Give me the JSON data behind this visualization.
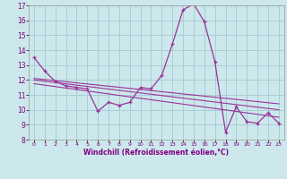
{
  "xlabel": "Windchill (Refroidissement éolien,°C)",
  "bg_color": "#cce8ec",
  "grid_color": "#aacdd4",
  "line_color": "#993399",
  "xlim": [
    -0.5,
    23.5
  ],
  "ylim": [
    8,
    17
  ],
  "xticks": [
    0,
    1,
    2,
    3,
    4,
    5,
    6,
    7,
    8,
    9,
    10,
    11,
    12,
    13,
    14,
    15,
    16,
    17,
    18,
    19,
    20,
    21,
    22,
    23
  ],
  "yticks": [
    8,
    9,
    10,
    11,
    12,
    13,
    14,
    15,
    16,
    17
  ],
  "series1_x": [
    0,
    1,
    2,
    3,
    4,
    5,
    6,
    7,
    8,
    9,
    10,
    11,
    12,
    13,
    14,
    15,
    16,
    17,
    18,
    19,
    20,
    21,
    22,
    23
  ],
  "series1_y": [
    13.5,
    12.6,
    11.9,
    11.6,
    11.5,
    11.4,
    9.9,
    10.5,
    10.3,
    10.5,
    11.5,
    11.4,
    12.3,
    14.4,
    16.7,
    17.1,
    15.9,
    13.2,
    8.5,
    10.2,
    9.2,
    9.1,
    9.8,
    9.1
  ],
  "trend1_x": [
    0,
    23
  ],
  "trend1_y": [
    12.1,
    10.4
  ],
  "trend2_x": [
    0,
    23
  ],
  "trend2_y": [
    11.75,
    9.5
  ],
  "trend3_x": [
    0,
    23
  ],
  "trend3_y": [
    12.0,
    10.0
  ]
}
